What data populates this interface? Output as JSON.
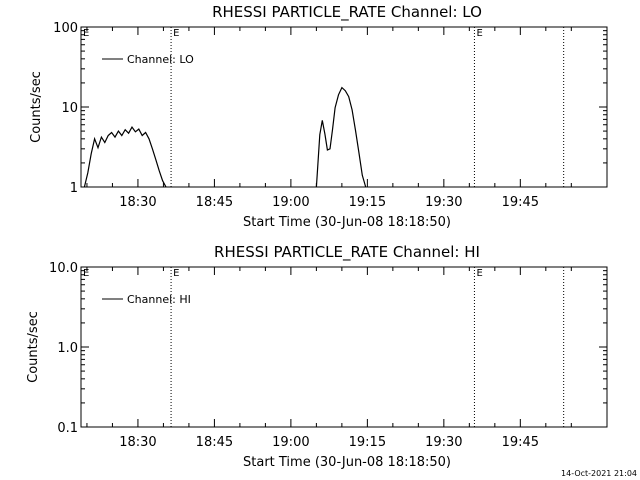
{
  "chart_data": [
    {
      "type": "line",
      "title": "RHESSI PARTICLE_RATE Channel: LO",
      "xlabel": "Start Time (30-Jun-08 18:18:50)",
      "ylabel": "Counts/sec",
      "yscale": "log",
      "xlim": [
        "18:18:50",
        "20:02:00"
      ],
      "ylim": [
        1,
        100
      ],
      "xticks": [
        "18:30",
        "18:45",
        "19:00",
        "19:15",
        "19:30",
        "19:45"
      ],
      "yticks": [
        "1",
        "10",
        "100"
      ],
      "legend": {
        "entries": [
          "Channel: LO"
        ],
        "placement": "top-left"
      },
      "grid": false,
      "markers": [
        {
          "time": "18:36:30",
          "label": "E"
        },
        {
          "time": "19:36:00",
          "label": "E"
        },
        {
          "time": "19:53:30",
          "label": ""
        }
      ],
      "series": [
        {
          "name": "Channel: LO",
          "segments": [
            [
              [
                "18:19:30",
                0.7
              ],
              [
                "18:20:10",
                1.5
              ],
              [
                "18:20:50",
                2.6
              ],
              [
                "18:21:30",
                4.0
              ],
              [
                "18:22:10",
                3.1
              ],
              [
                "18:22:50",
                4.2
              ],
              [
                "18:23:30",
                3.6
              ],
              [
                "18:24:10",
                4.4
              ],
              [
                "18:24:50",
                4.8
              ],
              [
                "18:25:30",
                4.2
              ],
              [
                "18:26:10",
                5.0
              ],
              [
                "18:26:50",
                4.4
              ],
              [
                "18:27:30",
                5.2
              ],
              [
                "18:28:10",
                4.7
              ],
              [
                "18:28:50",
                5.6
              ],
              [
                "18:29:30",
                4.9
              ],
              [
                "18:30:10",
                5.3
              ],
              [
                "18:30:50",
                4.4
              ],
              [
                "18:31:30",
                4.8
              ],
              [
                "18:32:10",
                4.0
              ],
              [
                "18:32:50",
                3.0
              ],
              [
                "18:33:30",
                2.2
              ],
              [
                "18:34:10",
                1.6
              ],
              [
                "18:34:50",
                1.2
              ],
              [
                "18:35:30",
                0.8
              ]
            ],
            [
              [
                "19:05:00",
                0.8
              ],
              [
                "19:05:40",
                4.5
              ],
              [
                "19:06:10",
                6.8
              ],
              [
                "19:06:40",
                4.6
              ],
              [
                "19:07:10",
                2.9
              ],
              [
                "19:07:40",
                3.0
              ],
              [
                "19:08:10",
                5.2
              ],
              [
                "19:08:40",
                9.8
              ],
              [
                "19:09:20",
                14.2
              ],
              [
                "19:10:00",
                17.5
              ],
              [
                "19:10:40",
                16.0
              ],
              [
                "19:11:20",
                13.5
              ],
              [
                "19:12:00",
                9.2
              ],
              [
                "19:12:40",
                5.1
              ],
              [
                "19:13:20",
                2.7
              ],
              [
                "19:14:00",
                1.4
              ],
              [
                "19:14:40",
                0.8
              ]
            ]
          ]
        }
      ]
    },
    {
      "type": "line",
      "title": "RHESSI PARTICLE_RATE Channel: HI",
      "xlabel": "Start Time (30-Jun-08 18:18:50)",
      "ylabel": "Counts/sec",
      "yscale": "log",
      "xlim": [
        "18:18:50",
        "20:02:00"
      ],
      "ylim": [
        0.1,
        10.0
      ],
      "xticks": [
        "18:30",
        "18:45",
        "19:00",
        "19:15",
        "19:30",
        "19:45"
      ],
      "yticks": [
        "0.1",
        "1.0",
        "10.0"
      ],
      "legend": {
        "entries": [
          "Channel: HI"
        ],
        "placement": "top-left"
      },
      "grid": false,
      "markers": [
        {
          "time": "18:36:30",
          "label": "E"
        },
        {
          "time": "19:36:00",
          "label": "E"
        },
        {
          "time": "19:53:30",
          "label": ""
        }
      ],
      "series": [
        {
          "name": "Channel: HI",
          "segments": []
        }
      ]
    }
  ],
  "footer": {
    "timestamp": "14-Oct-2021 21:04"
  }
}
